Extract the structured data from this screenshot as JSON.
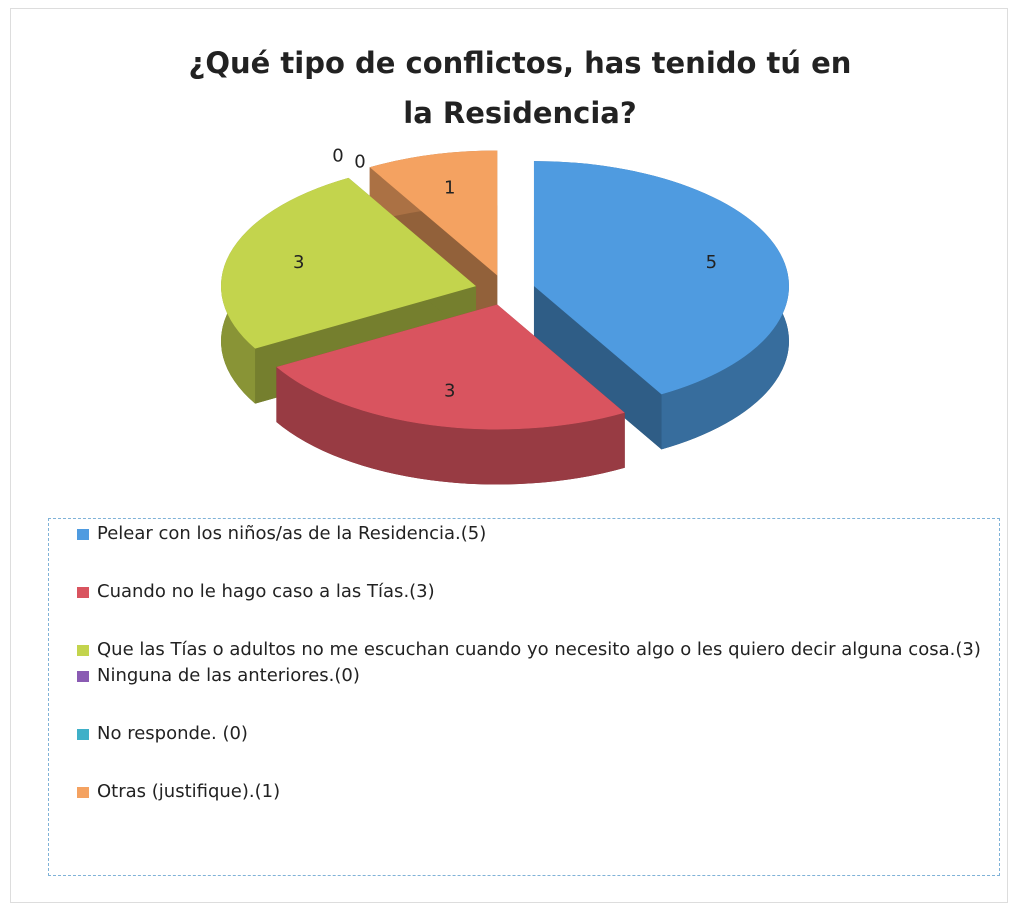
{
  "chart_data": {
    "type": "pie3d",
    "title": "¿Qué tipo de conflictos, has tenido tú en la Residencia?",
    "categories": [
      "Pelear con los niños/as de la Residencia.(5)",
      "Cuando no le hago caso a las Tías.(3)",
      "Que las Tías o adultos no me escuchan cuando yo necesito  algo o les quiero decir alguna cosa.(3)",
      "Ninguna de las anteriores.(0)",
      "No responde. (0)",
      "Otras  (justifique).(1)"
    ],
    "values": [
      5,
      3,
      3,
      0,
      0,
      1
    ],
    "colors": [
      "#4f9be0",
      "#d9545f",
      "#c3d44d",
      "#8a5bb3",
      "#3fb0c8",
      "#f4a261"
    ],
    "legend": "bottom"
  }
}
